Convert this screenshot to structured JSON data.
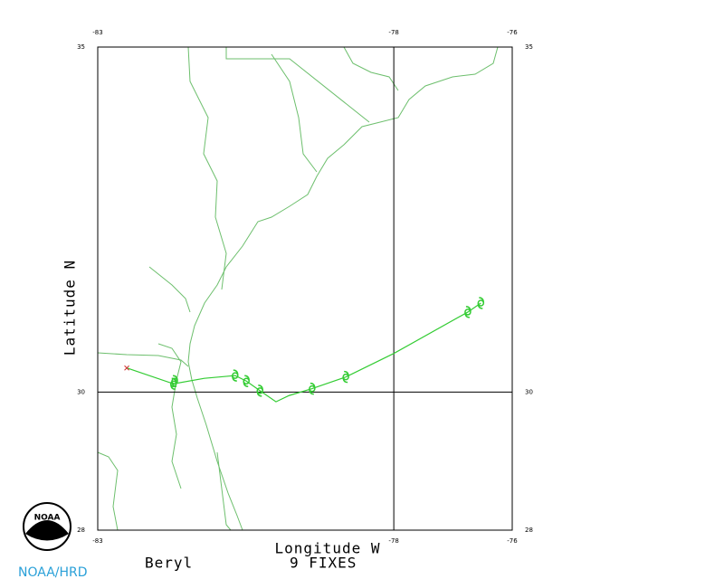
{
  "map": {
    "xlim": [
      -83,
      -76
    ],
    "ylim": [
      28,
      35
    ],
    "xticks": [
      -83,
      -78,
      -76
    ],
    "yticks": [
      28,
      30,
      35
    ],
    "x_label": "Longitude W",
    "y_label": "Latitude N",
    "storm": "Beryl",
    "fix_count_label": "9 FIXES",
    "credit": "NOAA/HRD",
    "logo_text": "NOAA",
    "track": {
      "color": "#33cc33",
      "lon": [
        -82.51,
        -81.72,
        -81.2,
        -80.68,
        -80.49,
        -80.26,
        -79.99,
        -79.77,
        -79.38,
        -78.81,
        -78.0,
        -76.75,
        -76.53
      ],
      "lat": [
        30.35,
        30.12,
        30.2,
        30.24,
        30.16,
        30.02,
        29.86,
        29.95,
        30.05,
        30.22,
        30.56,
        31.16,
        31.29
      ]
    },
    "fixes": {
      "color": "#33cc33",
      "lon": [
        -81.7,
        -81.72,
        -80.68,
        -80.49,
        -80.26,
        -79.38,
        -78.81,
        -76.75,
        -76.53
      ],
      "lat": [
        30.16,
        30.12,
        30.24,
        30.16,
        30.02,
        30.05,
        30.22,
        31.16,
        31.29
      ]
    }
  }
}
